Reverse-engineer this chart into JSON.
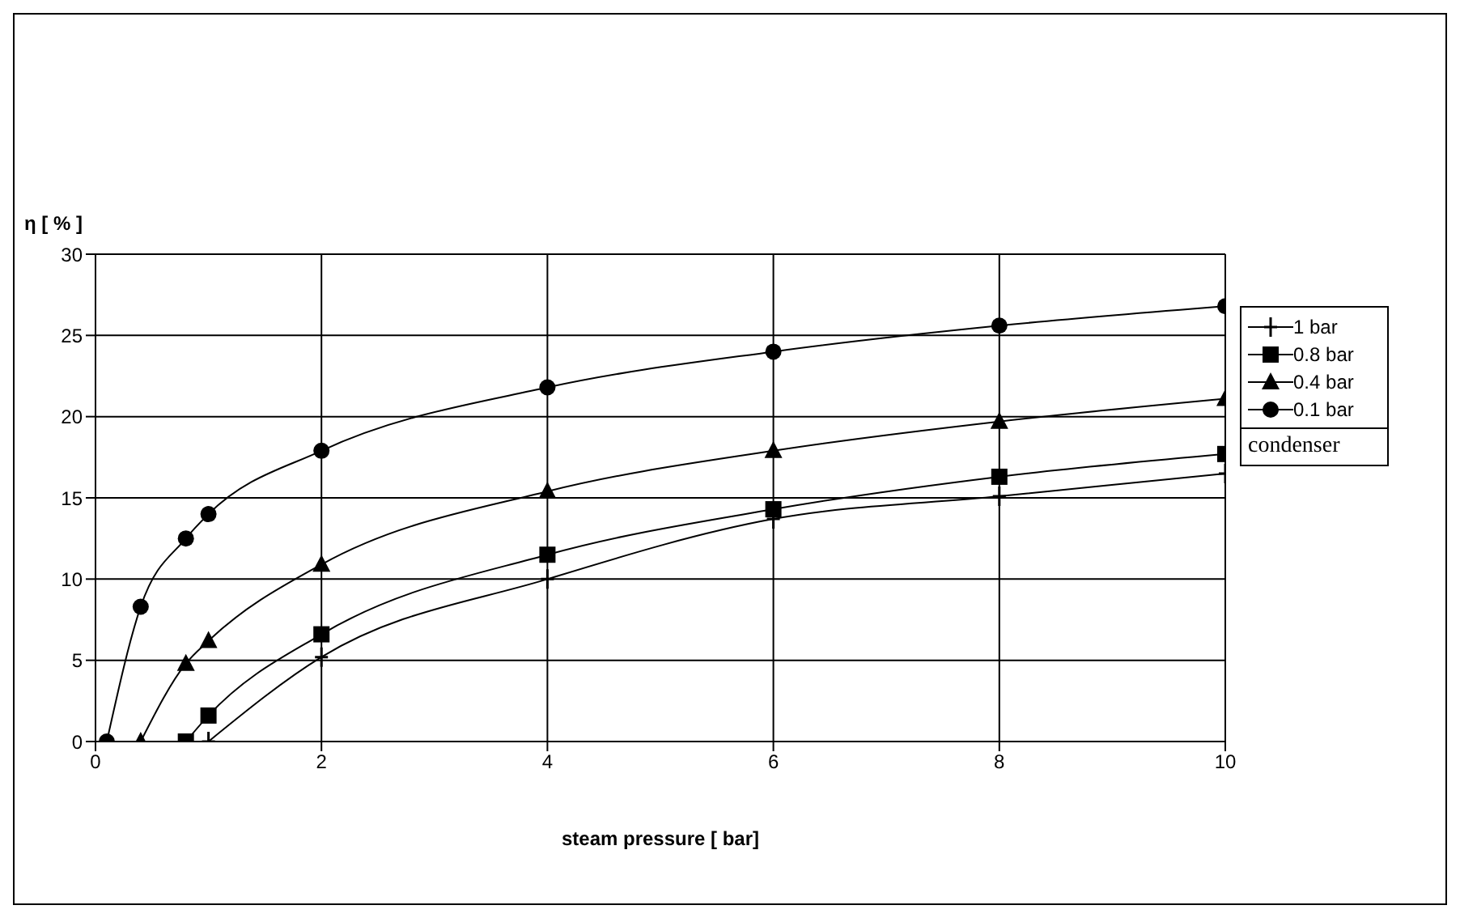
{
  "chart_data": {
    "type": "line",
    "xlabel": "steam  pressure [ bar]",
    "ylabel": "η [ % ]",
    "legend_title": "condenser",
    "legend": "right",
    "grid": true,
    "line_style": "solid",
    "xlim": [
      0,
      10
    ],
    "xticks": [
      0,
      2,
      4,
      6,
      8,
      10
    ],
    "ylim": [
      0,
      30
    ],
    "yticks": [
      0,
      5,
      10,
      15,
      20,
      25,
      30
    ],
    "series": [
      {
        "name": "1 bar",
        "color": "#000000",
        "marker": "cross",
        "x": [
          1,
          2,
          4,
          6,
          8,
          10
        ],
        "values": [
          0,
          5.2,
          10,
          13.7,
          15.1,
          16.5
        ]
      },
      {
        "name": "0.8 bar",
        "color": "#000000",
        "marker": "square",
        "x": [
          0.8,
          1,
          2,
          4,
          6,
          8,
          10
        ],
        "values": [
          0,
          1.6,
          6.6,
          11.5,
          14.3,
          16.3,
          17.7
        ]
      },
      {
        "name": "0.4 bar",
        "color": "#000000",
        "marker": "triangle",
        "x": [
          0.4,
          0.8,
          1,
          2,
          4,
          6,
          8,
          10
        ],
        "values": [
          0,
          4.8,
          6.2,
          10.9,
          15.4,
          17.9,
          19.7,
          21.1
        ]
      },
      {
        "name": "0.1 bar",
        "color": "#000000",
        "marker": "circle",
        "x": [
          0.1,
          0.4,
          0.8,
          1,
          2,
          4,
          6,
          8,
          10
        ],
        "values": [
          0,
          8.3,
          12.5,
          14,
          17.9,
          21.8,
          24,
          25.6,
          26.8
        ]
      }
    ]
  }
}
